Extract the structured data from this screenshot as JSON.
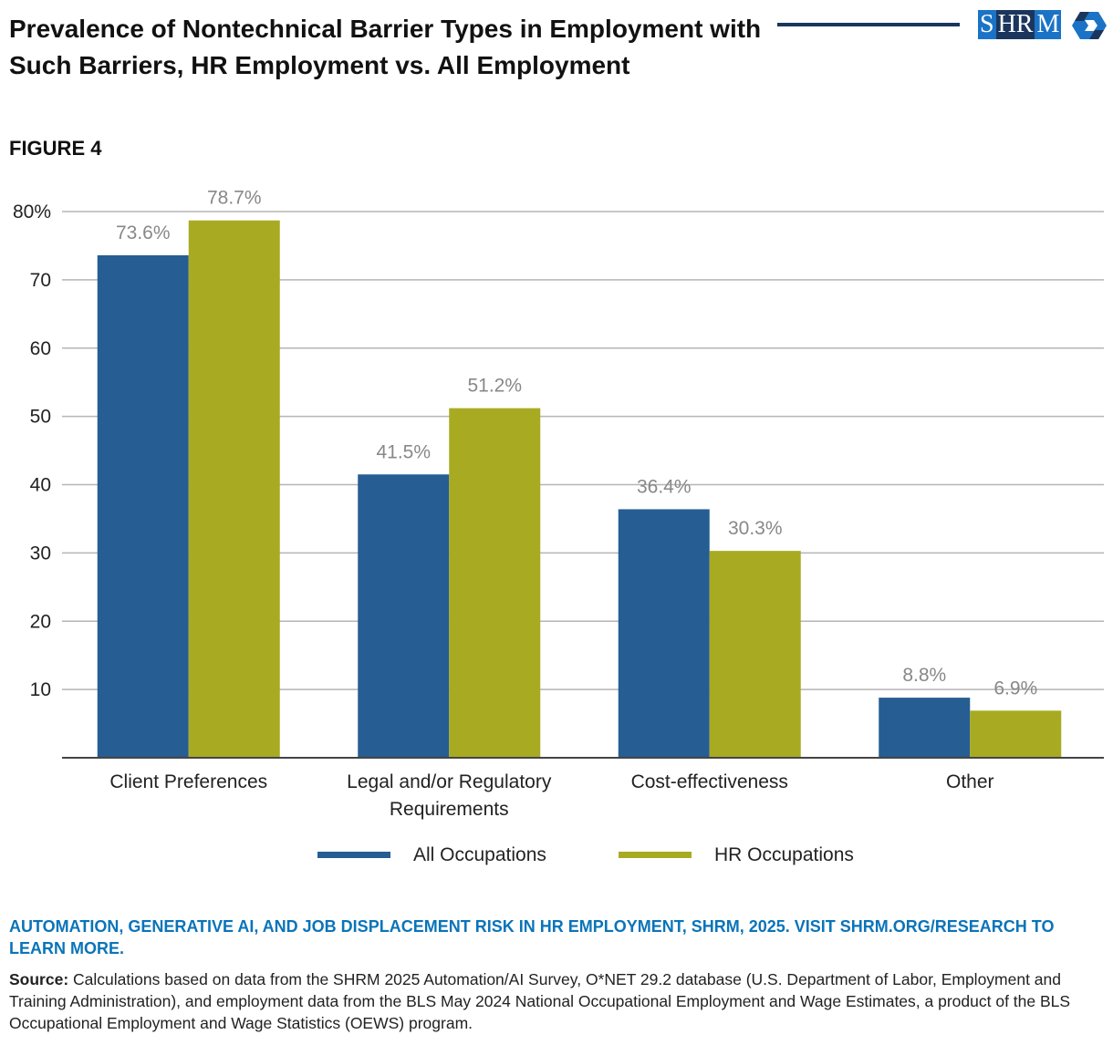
{
  "header": {
    "title": "Prevalence of Nontechnical Barrier Types in Employment with Such Barriers, HR Employment vs. All Employment",
    "figure_label": "FIGURE 4",
    "logo_text": "SHRM"
  },
  "colors": {
    "all": "#265d92",
    "hr": "#a8ab22",
    "accent": "#0a74b9",
    "navy": "#1b365d"
  },
  "chart_data": {
    "type": "bar",
    "categories": [
      "Client Preferences",
      "Legal and/or Regulatory Requirements",
      "Cost-effectiveness",
      "Other"
    ],
    "category_lines": [
      [
        "Client Preferences"
      ],
      [
        "Legal and/or Regulatory",
        "Requirements"
      ],
      [
        "Cost-effectiveness"
      ],
      [
        "Other"
      ]
    ],
    "series": [
      {
        "name": "All Occupations",
        "values": [
          73.6,
          41.5,
          36.4,
          8.8
        ]
      },
      {
        "name": "HR Occupations",
        "values": [
          78.7,
          51.2,
          30.3,
          6.9
        ]
      }
    ],
    "data_labels": [
      [
        "73.6%",
        "41.5%",
        "36.4%",
        "8.8%"
      ],
      [
        "78.7%",
        "51.2%",
        "30.3%",
        "6.9%"
      ]
    ],
    "yticks": [
      10,
      20,
      30,
      40,
      50,
      60,
      70,
      80
    ],
    "ytick_labels": [
      "10",
      "20",
      "30",
      "40",
      "50",
      "60",
      "70",
      "80%"
    ],
    "ylim": [
      0,
      80
    ],
    "grid": true,
    "legend": "bottom-center"
  },
  "footer": {
    "reference": "AUTOMATION, GENERATIVE AI, AND JOB DISPLACEMENT RISK IN HR EMPLOYMENT, SHRM, 2025. VISIT SHRM.ORG/RESEARCH TO LEARN MORE.",
    "source_label": "Source:",
    "source_text": " Calculations based on data from the SHRM 2025 Automation/AI Survey, O*NET 29.2 database (U.S. Department of Labor, Employment and Training Administration), and employment data from the BLS May 2024 National Occupational Employment and Wage Estimates, a product of the BLS Occupational Employment and Wage Statistics (OEWS) program."
  }
}
